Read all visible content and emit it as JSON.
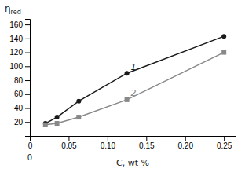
{
  "chart_data": {
    "type": "line",
    "xlabel": "C, wt %",
    "ylabel": {
      "text": "η",
      "subscript": "red"
    },
    "x": [
      0.02,
      0.035,
      0.063,
      0.125,
      0.25
    ],
    "series": [
      {
        "color": "#1a1a1a",
        "marker": "circle",
        "values": [
          18,
          27,
          50,
          90,
          143
        ]
      },
      {
        "color": "#888888",
        "marker": "square",
        "values": [
          16,
          18,
          27,
          52,
          120
        ]
      }
    ],
    "xlim": [
      0,
      0.265
    ],
    "ylim": [
      0,
      168
    ],
    "xticks": [
      0,
      0.05,
      {
        "value": 0.1,
        "label": "0.10"
      },
      0.15,
      {
        "value": 0.2,
        "label": "0.20"
      },
      0.25
    ],
    "yticks": [
      20,
      40,
      60,
      80,
      100,
      120,
      140,
      160
    ],
    "annotations": [
      {
        "text": "1",
        "x": 0.128,
        "y": 95,
        "color": "#1a1a1a"
      },
      {
        "text": "2",
        "x": 0.128,
        "y": 57,
        "color": "#888888"
      },
      {
        "text": "0",
        "x": 0
      }
    ],
    "grid": false
  }
}
